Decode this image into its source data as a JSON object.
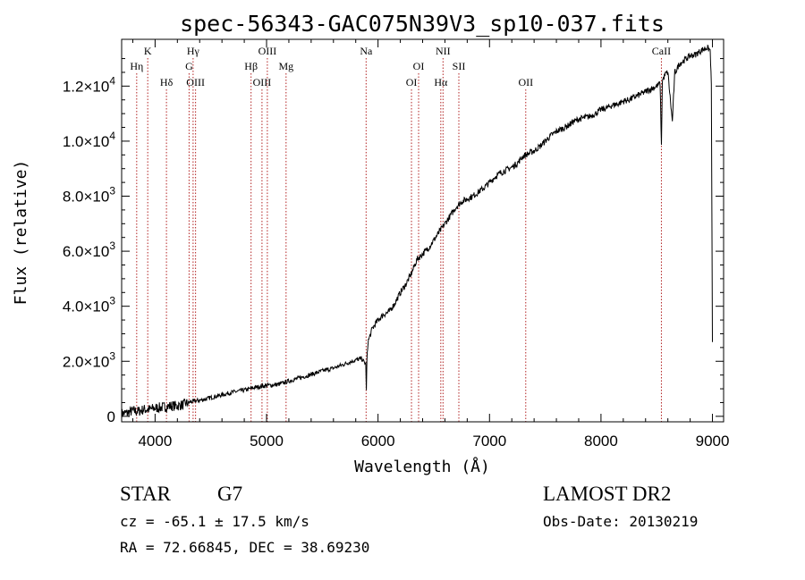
{
  "chart_data": {
    "type": "line",
    "title": "spec-56343-GAC075N39V3_sp10-037.fits",
    "xlabel": "Wavelength (Å)",
    "ylabel": "Flux (relative)",
    "xlim": [
      3700,
      9100
    ],
    "ylim": [
      -200,
      13700
    ],
    "x_ticks": [
      4000,
      5000,
      6000,
      7000,
      8000,
      9000
    ],
    "x_tick_labels": [
      "4000",
      "5000",
      "6000",
      "7000",
      "8000",
      "9000"
    ],
    "y_ticks": [
      0,
      2000,
      4000,
      6000,
      8000,
      10000,
      12000
    ],
    "y_tick_labels": [
      {
        "mant": "0",
        "exp": ""
      },
      {
        "mant": "2.0×10",
        "exp": "3"
      },
      {
        "mant": "4.0×10",
        "exp": "3"
      },
      {
        "mant": "6.0×10",
        "exp": "3"
      },
      {
        "mant": "8.0×10",
        "exp": "3"
      },
      {
        "mant": "1.0×10",
        "exp": "4"
      },
      {
        "mant": "1.2×10",
        "exp": "4"
      }
    ],
    "series": [
      {
        "x": [
          3700,
          3750,
          3800,
          3850,
          3900,
          3950,
          4000,
          4050,
          4100,
          4150,
          4200,
          4250,
          4300,
          4350,
          4400,
          4450,
          4500,
          4600,
          4700,
          4800,
          4900,
          5000,
          5100,
          5200,
          5300,
          5400,
          5500,
          5600,
          5700,
          5800,
          5850,
          5890,
          5895,
          5900,
          5910,
          5950,
          6000,
          6050,
          6100,
          6150,
          6200,
          6250,
          6300,
          6350,
          6400,
          6450,
          6500,
          6550,
          6600,
          6650,
          6700,
          6750,
          6800,
          6850,
          6900,
          6950,
          7000,
          7050,
          7100,
          7150,
          7200,
          7250,
          7300,
          7350,
          7400,
          7450,
          7500,
          7550,
          7600,
          7650,
          7700,
          7750,
          7800,
          7850,
          7900,
          7950,
          8000,
          8050,
          8100,
          8150,
          8200,
          8250,
          8300,
          8350,
          8400,
          8450,
          8500,
          8530,
          8542,
          8550,
          8580,
          8600,
          8640,
          8662,
          8680,
          8700,
          8750,
          8800,
          8850,
          8900,
          8950,
          8980,
          8990,
          9000
        ],
        "y": [
          100,
          120,
          200,
          180,
          250,
          250,
          300,
          320,
          350,
          380,
          380,
          420,
          500,
          550,
          580,
          620,
          680,
          780,
          880,
          950,
          1050,
          1120,
          1150,
          1280,
          1400,
          1520,
          1650,
          1750,
          1900,
          2050,
          2100,
          1900,
          900,
          2000,
          2700,
          3200,
          3500,
          3700,
          3800,
          4100,
          4500,
          4800,
          5200,
          5700,
          5900,
          6100,
          6400,
          6700,
          7000,
          7300,
          7600,
          7800,
          7900,
          8000,
          8150,
          8300,
          8500,
          8700,
          8850,
          8950,
          9050,
          9200,
          9450,
          9550,
          9650,
          9800,
          10000,
          10200,
          10350,
          10450,
          10550,
          10700,
          10800,
          10850,
          10900,
          11000,
          11150,
          11200,
          11300,
          11350,
          11450,
          11500,
          11600,
          11700,
          11800,
          11900,
          12000,
          12100,
          9800,
          12200,
          12450,
          12500,
          10700,
          12500,
          12600,
          12800,
          12950,
          13100,
          13150,
          13300,
          13400,
          13300,
          12000,
          2700
        ]
      }
    ],
    "lines": [
      {
        "label": "Hη",
        "x": 3835,
        "row": 1
      },
      {
        "label": "K",
        "x": 3934,
        "row": 0
      },
      {
        "label": "Hδ",
        "x": 4102,
        "row": 2
      },
      {
        "label": "Hγ",
        "x": 4341,
        "row": 0
      },
      {
        "label": "G",
        "x": 4305,
        "row": 1
      },
      {
        "label": "OIII",
        "x": 4363,
        "row": 2
      },
      {
        "label": "OIII",
        "x": 5007,
        "row": 0
      },
      {
        "label": "Hβ",
        "x": 4861,
        "row": 1
      },
      {
        "label": "Mg",
        "x": 5175,
        "row": 1
      },
      {
        "label": "OIII",
        "x": 4959,
        "row": 2
      },
      {
        "label": "Na",
        "x": 5893,
        "row": 0
      },
      {
        "label": "NII",
        "x": 6583,
        "row": 0
      },
      {
        "label": "OI",
        "x": 6364,
        "row": 1
      },
      {
        "label": "SII",
        "x": 6725,
        "row": 1
      },
      {
        "label": "OI",
        "x": 6300,
        "row": 2
      },
      {
        "label": "Hα",
        "x": 6563,
        "row": 2
      },
      {
        "label": "OII",
        "x": 7325,
        "row": 2
      },
      {
        "label": "CaII",
        "x": 8542,
        "row": 0
      }
    ]
  },
  "info": {
    "object_class": "STAR",
    "subclass": "G7",
    "cz": "cz = -65.1 ± 17.5 km/s",
    "coords": "RA =  72.66845, DEC =  38.69230",
    "survey": "LAMOST DR2",
    "obs_date": "Obs-Date: 20130219"
  },
  "colors": {
    "spectrum": "#000000",
    "line_markers": "#b22222"
  }
}
